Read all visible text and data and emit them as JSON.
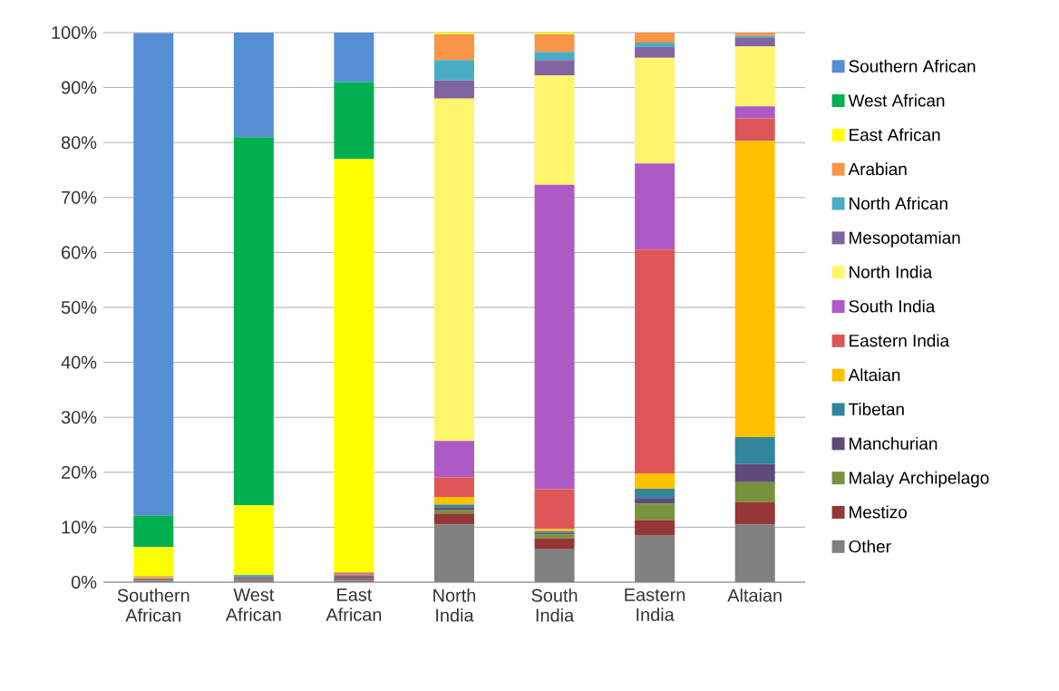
{
  "chart_data": {
    "type": "bar",
    "stacked": true,
    "categories": [
      "Southern African",
      "West African",
      "East African",
      "North India",
      "South India",
      "Eastern India",
      "Altaian"
    ],
    "ylim": [
      0,
      100
    ],
    "yticks": [
      {
        "value": 0,
        "label": "0%"
      },
      {
        "value": 10,
        "label": "10%"
      },
      {
        "value": 20,
        "label": "20%"
      },
      {
        "value": 30,
        "label": "30%"
      },
      {
        "value": 40,
        "label": "40%"
      },
      {
        "value": 50,
        "label": "50%"
      },
      {
        "value": 60,
        "label": "60%"
      },
      {
        "value": 70,
        "label": "70%"
      },
      {
        "value": 80,
        "label": "80%"
      },
      {
        "value": 90,
        "label": "90%"
      },
      {
        "value": 100,
        "label": "100%"
      }
    ],
    "grid": "y",
    "legend": "right",
    "series": [
      {
        "name": "Other",
        "color": "#808080",
        "values": [
          0.3,
          0.4,
          0.4,
          10.5,
          6.0,
          8.6,
          10.5
        ]
      },
      {
        "name": "Mestizo",
        "color": "#953735",
        "values": [
          0.1,
          0.2,
          0.3,
          2.0,
          2.0,
          2.7,
          4.1
        ]
      },
      {
        "name": "Malay Archipelago",
        "color": "#77933c",
        "values": [
          0.1,
          0.1,
          0.1,
          0.7,
          0.7,
          3.0,
          3.6
        ]
      },
      {
        "name": "Manchurian",
        "color": "#604a7b",
        "values": [
          0.1,
          0.2,
          0.3,
          0.4,
          0.3,
          1.0,
          3.3
        ]
      },
      {
        "name": "Tibetan",
        "color": "#31859c",
        "values": [
          0.1,
          0.1,
          0.1,
          0.5,
          0.3,
          1.7,
          4.9
        ]
      },
      {
        "name": "Altaian",
        "color": "#ffc000",
        "values": [
          0.2,
          0,
          0,
          1.4,
          0.4,
          2.8,
          53.9
        ]
      },
      {
        "name": "Eastern India",
        "color": "#dc5656",
        "values": [
          0.1,
          0,
          0.2,
          3.6,
          7.2,
          40.7,
          4.1
        ]
      },
      {
        "name": "South India",
        "color": "#ad59c6",
        "values": [
          0,
          0,
          0.1,
          6.6,
          55.4,
          15.7,
          2.2
        ]
      },
      {
        "name": "North India",
        "color": "#fff56a",
        "values": [
          0,
          0,
          0,
          62.3,
          19.9,
          19.2,
          10.9
        ]
      },
      {
        "name": "Mesopotamian",
        "color": "#8064a2",
        "values": [
          0,
          0,
          0.1,
          3.3,
          2.8,
          2.0,
          1.5
        ]
      },
      {
        "name": "North African",
        "color": "#4bacc6",
        "values": [
          0,
          0.3,
          0,
          3.7,
          1.5,
          0.8,
          0.4
        ]
      },
      {
        "name": "Arabian",
        "color": "#f79646",
        "values": [
          0.1,
          0,
          0.2,
          4.7,
          3.2,
          1.8,
          0.6
        ]
      },
      {
        "name": "East African",
        "color": "#ffff00",
        "values": [
          5.3,
          12.7,
          75.2,
          0.3,
          0.3,
          0,
          0
        ]
      },
      {
        "name": "West African",
        "color": "#00b050",
        "values": [
          5.7,
          67,
          14,
          0,
          0,
          0,
          0
        ]
      },
      {
        "name": "Southern African",
        "color": "#558ed5",
        "values": [
          87.8,
          19,
          9,
          0,
          0,
          0,
          0
        ]
      }
    ]
  }
}
